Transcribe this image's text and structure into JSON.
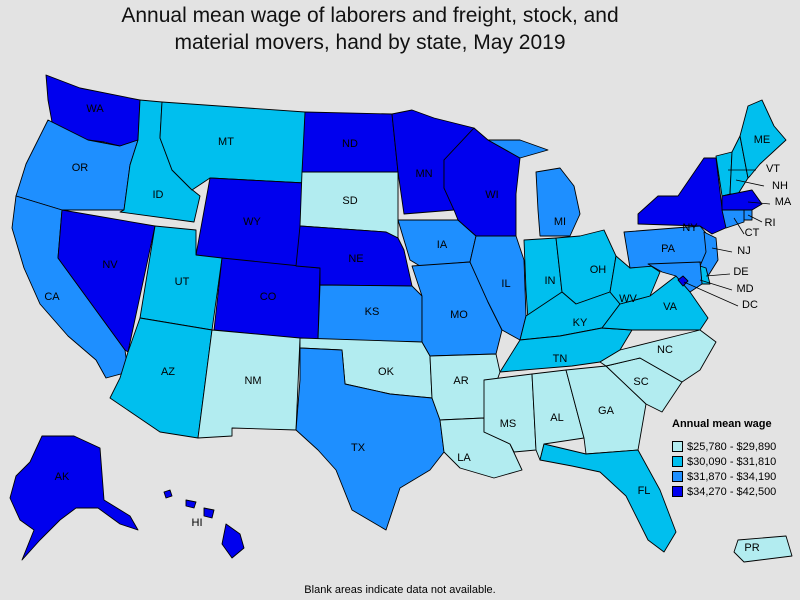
{
  "title": {
    "line1": "Annual mean wage of laborers and freight, stock, and",
    "line2": "material movers, hand by state, May 2019"
  },
  "legend": {
    "title": "Annual mean wage",
    "position": "bottom-right",
    "bins": [
      {
        "label": "$25,780 - $29,890",
        "color": "#b2ecf0"
      },
      {
        "label": "$30,090 - $31,810",
        "color": "#00bfee"
      },
      {
        "label": "$31,870 - $34,190",
        "color": "#1e8fff"
      },
      {
        "label": "$34,270 - $42,500",
        "color": "#0000ee"
      }
    ]
  },
  "footnote": "Blank areas indicate data not available.",
  "states": [
    {
      "abbr": "WA",
      "bin": 3
    },
    {
      "abbr": "OR",
      "bin": 2
    },
    {
      "abbr": "CA",
      "bin": 2
    },
    {
      "abbr": "NV",
      "bin": 3
    },
    {
      "abbr": "ID",
      "bin": 1
    },
    {
      "abbr": "MT",
      "bin": 1
    },
    {
      "abbr": "WY",
      "bin": 3
    },
    {
      "abbr": "UT",
      "bin": 1
    },
    {
      "abbr": "AZ",
      "bin": 1
    },
    {
      "abbr": "CO",
      "bin": 3
    },
    {
      "abbr": "NM",
      "bin": 0
    },
    {
      "abbr": "ND",
      "bin": 3
    },
    {
      "abbr": "SD",
      "bin": 0
    },
    {
      "abbr": "NE",
      "bin": 3
    },
    {
      "abbr": "KS",
      "bin": 2
    },
    {
      "abbr": "OK",
      "bin": 0
    },
    {
      "abbr": "TX",
      "bin": 2
    },
    {
      "abbr": "MN",
      "bin": 3
    },
    {
      "abbr": "IA",
      "bin": 2
    },
    {
      "abbr": "MO",
      "bin": 2
    },
    {
      "abbr": "AR",
      "bin": 0
    },
    {
      "abbr": "LA",
      "bin": 0
    },
    {
      "abbr": "WI",
      "bin": 3
    },
    {
      "abbr": "IL",
      "bin": 2
    },
    {
      "abbr": "MI",
      "bin": 2
    },
    {
      "abbr": "IN",
      "bin": 1
    },
    {
      "abbr": "OH",
      "bin": 1
    },
    {
      "abbr": "KY",
      "bin": 1
    },
    {
      "abbr": "TN",
      "bin": 1
    },
    {
      "abbr": "MS",
      "bin": 0
    },
    {
      "abbr": "AL",
      "bin": 0
    },
    {
      "abbr": "GA",
      "bin": 0
    },
    {
      "abbr": "FL",
      "bin": 1
    },
    {
      "abbr": "SC",
      "bin": 0
    },
    {
      "abbr": "NC",
      "bin": 0
    },
    {
      "abbr": "VA",
      "bin": 1
    },
    {
      "abbr": "WV",
      "bin": 1
    },
    {
      "abbr": "PA",
      "bin": 2
    },
    {
      "abbr": "NY",
      "bin": 3
    },
    {
      "abbr": "VT",
      "bin": 1
    },
    {
      "abbr": "NH",
      "bin": 1
    },
    {
      "abbr": "ME",
      "bin": 1
    },
    {
      "abbr": "MA",
      "bin": 3
    },
    {
      "abbr": "RI",
      "bin": 2
    },
    {
      "abbr": "CT",
      "bin": 2
    },
    {
      "abbr": "NJ",
      "bin": 2
    },
    {
      "abbr": "DE",
      "bin": 1
    },
    {
      "abbr": "MD",
      "bin": 2
    },
    {
      "abbr": "DC",
      "bin": 3
    },
    {
      "abbr": "AK",
      "bin": 3
    },
    {
      "abbr": "HI",
      "bin": 3
    },
    {
      "abbr": "PR",
      "bin": 0
    }
  ]
}
